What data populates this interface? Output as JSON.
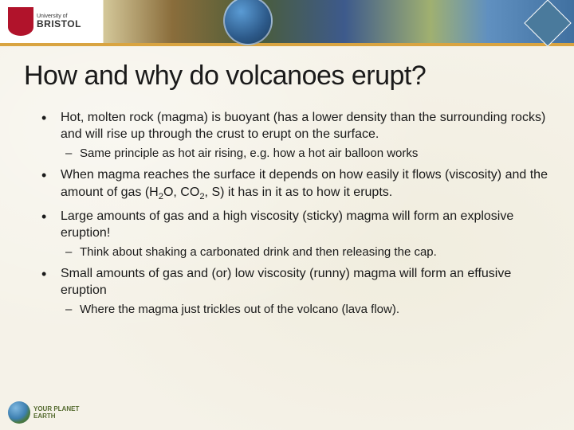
{
  "header": {
    "logo_small": "University of",
    "logo_big": "BRISTOL"
  },
  "title": "How and why do volcanoes erupt?",
  "bullets": [
    {
      "text": "Hot, molten rock (magma) is buoyant (has a lower density than the surrounding rocks) and will rise up through the crust to erupt on the surface.",
      "sub": [
        "Same principle as hot air rising, e.g. how a hot air balloon works"
      ]
    },
    {
      "html": "When magma reaches the surface it depends on how easily it flows (viscosity) and the amount of gas (H<span class=\"sub\">2</span>O, CO<span class=\"sub\">2</span>, S) it has in it as to how it erupts."
    },
    {
      "text": "Large amounts of gas and a high viscosity (sticky) magma will form an explosive eruption!",
      "sub": [
        "Think about shaking a carbonated drink and then releasing the cap."
      ]
    },
    {
      "text": "Small amounts of gas and (or) low viscosity (runny) magma will form an effusive eruption",
      "sub": [
        "Where the magma just trickles out of the volcano (lava flow)."
      ]
    }
  ],
  "footer": {
    "line1": "YOUR PLANET",
    "line2": "EARTH"
  },
  "colors": {
    "background": "#f5f2e8",
    "accent_bar": "#d9a441",
    "logo_red": "#b1132b",
    "text": "#1a1a1a"
  },
  "typography": {
    "title_fontsize": 34,
    "bullet_fontsize": 16,
    "sub_bullet_fontsize": 15
  }
}
